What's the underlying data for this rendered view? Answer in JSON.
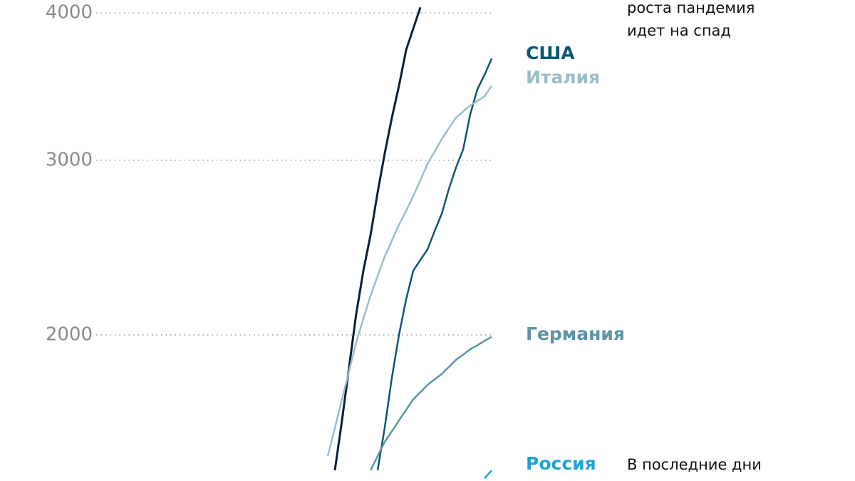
{
  "chart_data": {
    "type": "line",
    "y_scale": "sqrt",
    "grid": true,
    "xlim": [
      0,
      25
    ],
    "ylim": [
      1319,
      4095
    ],
    "yticks": [
      2000,
      3000,
      4000
    ],
    "x": [
      0,
      1,
      2,
      3,
      4,
      5,
      6,
      7,
      8,
      9,
      10,
      11,
      12,
      13,
      14,
      15,
      16,
      17,
      18,
      19,
      20,
      21,
      22,
      23,
      24,
      25
    ],
    "series": [
      {
        "color": "#0d1f33",
        "values": [
          null,
          null,
          null,
          1364,
          1584,
          1839,
          2111,
          2344,
          2546,
          2800,
          3044,
          3274,
          3488,
          3735,
          3887,
          4041,
          null,
          null,
          null,
          null,
          null,
          null,
          null,
          null,
          null,
          null
        ]
      },
      {
        "name": "США",
        "color": "#0e5673",
        "values": [
          null,
          null,
          null,
          null,
          null,
          null,
          null,
          null,
          null,
          1364,
          1552,
          1786,
          2000,
          2187,
          2344,
          2405,
          2464,
          2570,
          2672,
          2822,
          2954,
          3067,
          3297,
          3464,
          3562,
          3675
        ]
      },
      {
        "name": "Италия",
        "color": "#9bbdcb",
        "values": [
          null,
          null,
          1425,
          1550,
          1683,
          1820,
          1963,
          2085,
          2206,
          2315,
          2424,
          2515,
          2608,
          2690,
          2778,
          2875,
          2977,
          3055,
          3135,
          3205,
          3274,
          3315,
          3355,
          3385,
          3416,
          3488
        ]
      },
      {
        "name": "Германия",
        "color": "#5e93a8",
        "values": [
          null,
          null,
          null,
          null,
          null,
          null,
          null,
          null,
          1364,
          1425,
          1488,
          1535,
          1584,
          1633,
          1683,
          1717,
          1751,
          1778,
          1804,
          1839,
          1874,
          1900,
          1927,
          1947,
          1970,
          1990
        ]
      },
      {
        "name": "Россия",
        "color": "#1fa3d4",
        "values": [
          null,
          null,
          null,
          null,
          null,
          null,
          null,
          null,
          null,
          null,
          null,
          null,
          null,
          null,
          null,
          null,
          null,
          null,
          null,
          null,
          null,
          null,
          null,
          null,
          1330,
          1364
        ]
      }
    ],
    "annotations": [
      "роста пандемия",
      "идет на спад",
      "В последние дни"
    ]
  }
}
